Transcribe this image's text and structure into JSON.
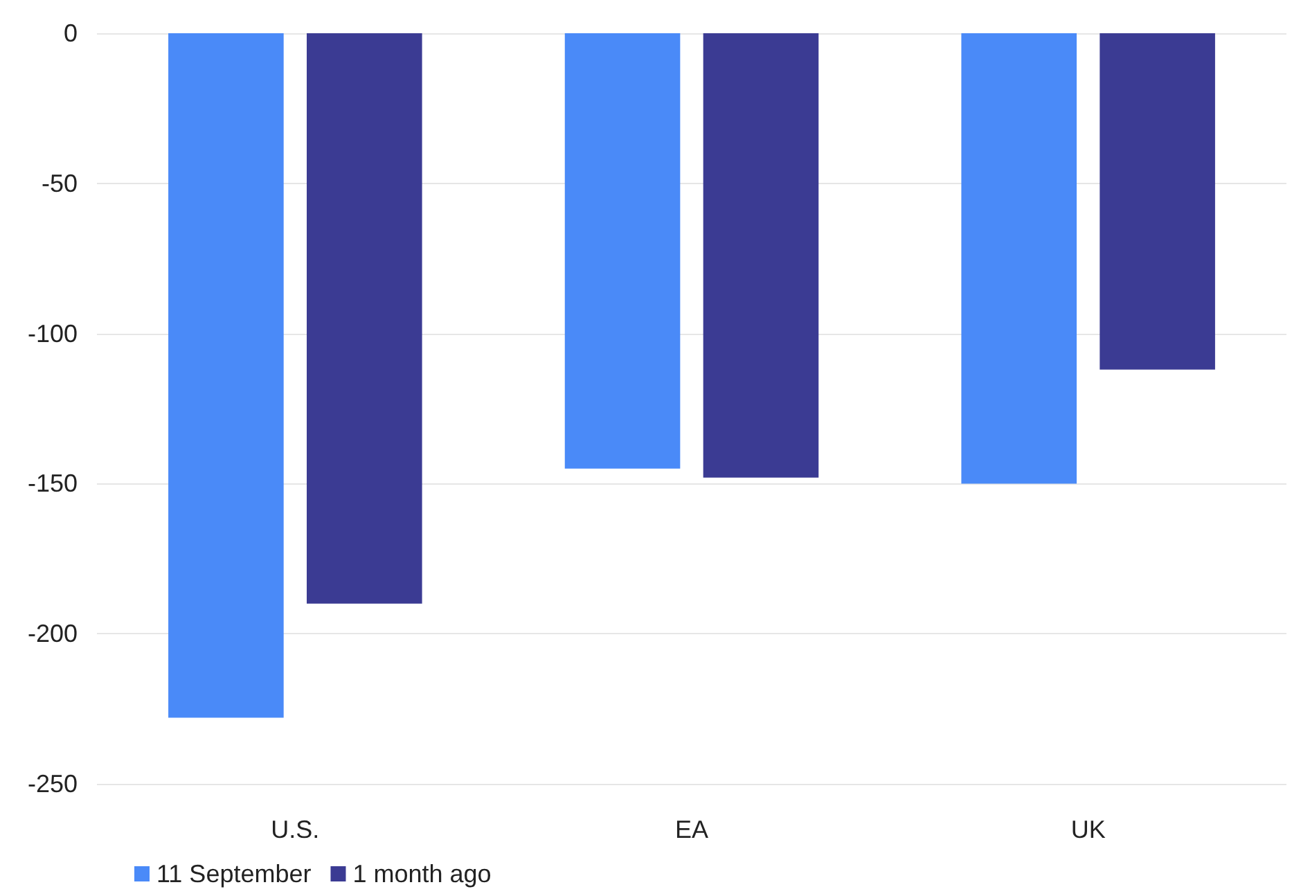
{
  "chart_data": {
    "type": "bar",
    "categories": [
      "U.S.",
      "EA",
      "UK"
    ],
    "series": [
      {
        "name": "11 September",
        "color": "#4a8af8",
        "values": [
          -228,
          -145,
          -150
        ]
      },
      {
        "name": "1 month ago",
        "color": "#3b3b93",
        "values": [
          -190,
          -148,
          -112
        ]
      }
    ],
    "ylim": [
      -250,
      0
    ],
    "yticks": [
      -250,
      -200,
      -150,
      -100,
      -50,
      0
    ],
    "grid": "y",
    "legend": "bottom left"
  }
}
